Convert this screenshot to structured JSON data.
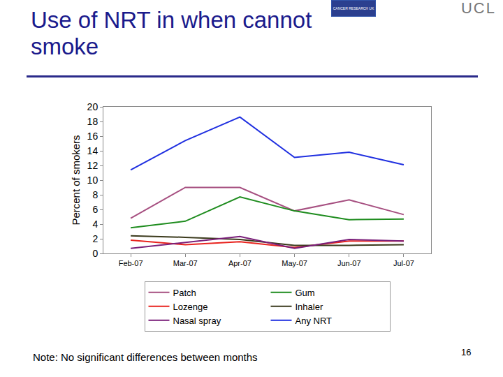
{
  "chart_data": {
    "type": "line",
    "title": "Use of NRT in when cannot smoke",
    "y_label": "Percent of smokers",
    "categories": [
      "Feb-07",
      "Mar-07",
      "Apr-07",
      "May-07",
      "Jun-07",
      "Jul-07"
    ],
    "series": [
      {
        "name": "Patch",
        "color": "#a64f80",
        "values": [
          4.8,
          9.0,
          9.0,
          5.8,
          7.3,
          5.3
        ]
      },
      {
        "name": "Gum",
        "color": "#1e8c1e",
        "values": [
          3.5,
          4.4,
          7.7,
          5.8,
          4.6,
          4.7
        ]
      },
      {
        "name": "Lozenge",
        "color": "#e8231e",
        "values": [
          1.8,
          1.2,
          1.6,
          0.8,
          1.7,
          1.7
        ]
      },
      {
        "name": "Inhaler",
        "color": "#3b3a1c",
        "values": [
          2.4,
          2.2,
          1.9,
          1.1,
          1.1,
          1.2
        ]
      },
      {
        "name": "Nasal spray",
        "color": "#7a1f7a",
        "values": [
          0.7,
          1.5,
          2.3,
          0.7,
          1.9,
          1.7
        ]
      },
      {
        "name": "Any NRT",
        "color": "#1f2fe0",
        "values": [
          11.4,
          15.4,
          18.6,
          13.1,
          13.8,
          12.1
        ]
      }
    ],
    "ylim": [
      0,
      20
    ],
    "yticks": [
      0,
      2,
      4,
      6,
      8,
      10,
      12,
      14,
      16,
      18,
      20
    ],
    "grid": false,
    "legend": "bottom"
  },
  "slide": {
    "note": "Note: No significant differences between months",
    "page_number": "16",
    "logos": [
      "CANCER RESEARCH UK",
      "UCL"
    ]
  }
}
